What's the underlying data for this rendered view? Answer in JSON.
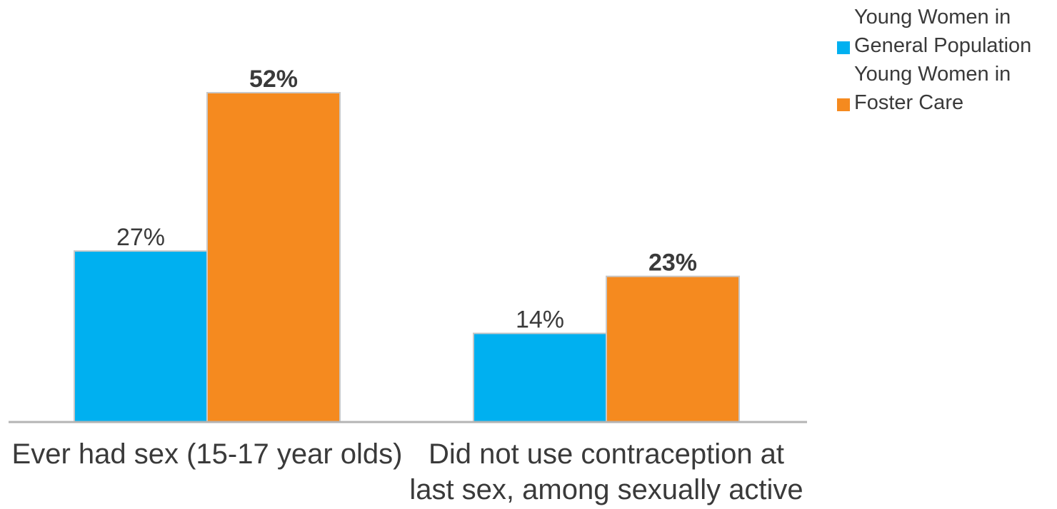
{
  "chart_data": {
    "type": "bar",
    "categories": [
      [
        "Ever had sex (15-17 year olds)"
      ],
      [
        "Did not use contraception at",
        "last sex, among sexually active"
      ]
    ],
    "series": [
      {
        "name": [
          "Young Women in",
          "General Population"
        ],
        "values": [
          27,
          14
        ],
        "labels": [
          "27%",
          "14%"
        ],
        "color": "#00b0f0",
        "label_weight": "normal"
      },
      {
        "name": [
          "Young Women in",
          "Foster Care"
        ],
        "values": [
          52,
          23
        ],
        "labels": [
          "52%",
          "23%"
        ],
        "color": "#f58a1f",
        "label_weight": "bold"
      }
    ],
    "ylim": [
      0,
      55
    ],
    "grid": false,
    "legend_position": "top-right",
    "title": "",
    "xlabel": "",
    "ylabel": ""
  }
}
